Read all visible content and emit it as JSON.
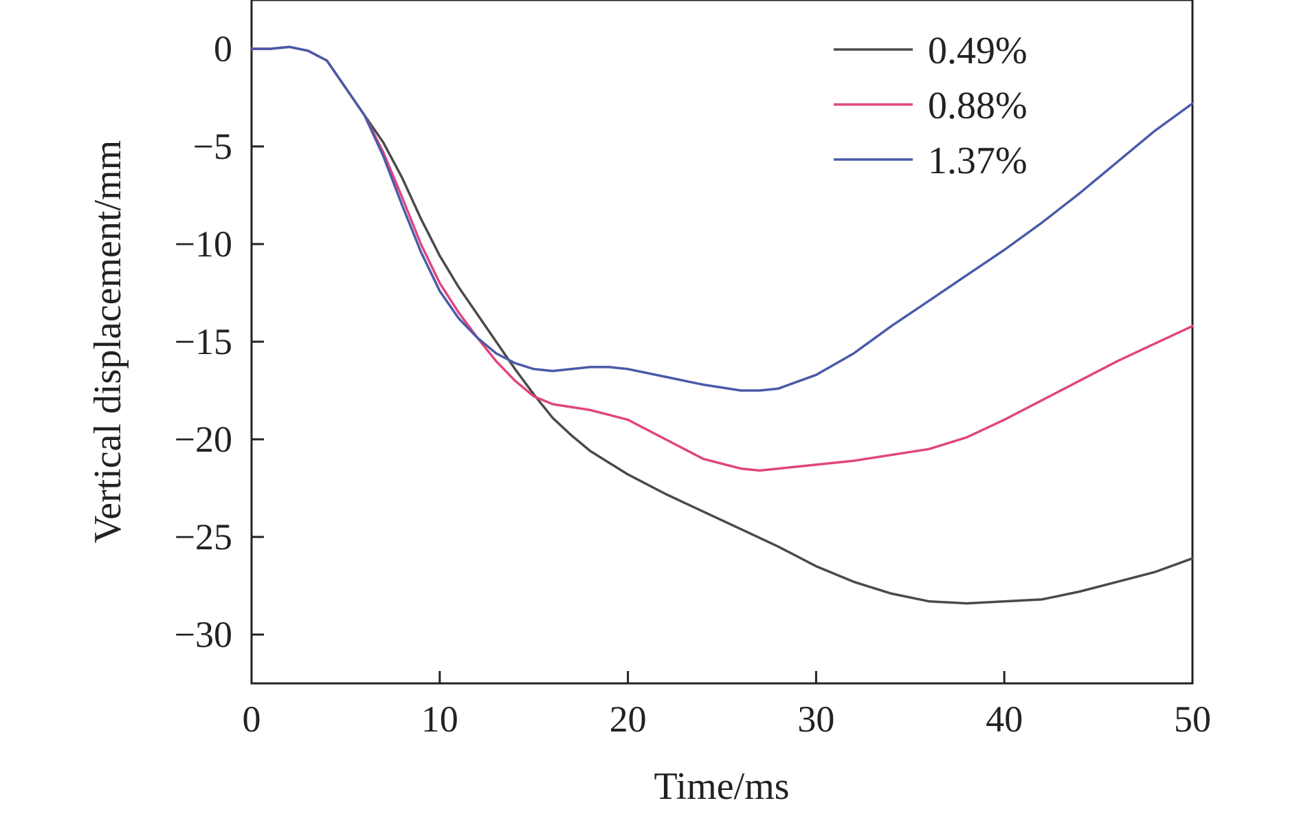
{
  "chart_data": {
    "type": "line",
    "xlabel": "Time/ms",
    "ylabel": "Vertical displacement/mm",
    "xlim": [
      0,
      50
    ],
    "ylim": [
      -32.5,
      2.5
    ],
    "xticks": [
      0,
      10,
      20,
      30,
      40,
      50
    ],
    "yticks": [
      0,
      -5,
      -10,
      -15,
      -20,
      -25,
      -30
    ],
    "ytick_labels": [
      "0",
      "−5",
      "−10",
      "−15",
      "−20",
      "−25",
      "−30"
    ],
    "grid": false,
    "legend_position": "top-right",
    "series": [
      {
        "name": "0.49%",
        "color": "#4a4a4a",
        "x": [
          0,
          1,
          2,
          3,
          4,
          5,
          6,
          7,
          8,
          9,
          10,
          11,
          12,
          13,
          14,
          15,
          16,
          17,
          18,
          19,
          20,
          22,
          24,
          26,
          28,
          30,
          32,
          34,
          36,
          38,
          40,
          42,
          44,
          46,
          48,
          50
        ],
        "y": [
          0,
          0,
          0.1,
          -0.1,
          -0.6,
          -2.0,
          -3.4,
          -4.8,
          -6.6,
          -8.7,
          -10.6,
          -12.2,
          -13.6,
          -15.0,
          -16.4,
          -17.7,
          -18.9,
          -19.8,
          -20.6,
          -21.2,
          -21.8,
          -22.8,
          -23.7,
          -24.6,
          -25.5,
          -26.5,
          -27.3,
          -27.9,
          -28.3,
          -28.4,
          -28.3,
          -28.2,
          -27.8,
          -27.3,
          -26.8,
          -26.1
        ]
      },
      {
        "name": "0.88%",
        "color": "#e0457b",
        "x": [
          0,
          1,
          2,
          3,
          4,
          5,
          6,
          7,
          8,
          9,
          10,
          11,
          12,
          13,
          14,
          15,
          16,
          18,
          20,
          22,
          24,
          26,
          27,
          28,
          30,
          32,
          34,
          36,
          38,
          40,
          42,
          44,
          46,
          48,
          50
        ],
        "y": [
          0,
          0,
          0.1,
          -0.1,
          -0.6,
          -2.0,
          -3.4,
          -5.3,
          -7.6,
          -10.0,
          -12.0,
          -13.5,
          -14.8,
          -16.0,
          -17.0,
          -17.8,
          -18.2,
          -18.5,
          -19.0,
          -20.0,
          -21.0,
          -21.5,
          -21.6,
          -21.5,
          -21.3,
          -21.1,
          -20.8,
          -20.5,
          -19.9,
          -19.0,
          -18.0,
          -17.0,
          -16.0,
          -15.1,
          -14.2
        ]
      },
      {
        "name": "1.37%",
        "color": "#4b5aa8",
        "x": [
          0,
          1,
          2,
          3,
          4,
          5,
          6,
          7,
          8,
          9,
          10,
          11,
          12,
          13,
          14,
          15,
          16,
          17,
          18,
          19,
          20,
          22,
          24,
          26,
          27,
          28,
          30,
          32,
          34,
          36,
          38,
          40,
          42,
          44,
          46,
          48,
          50
        ],
        "y": [
          0,
          0,
          0.1,
          -0.1,
          -0.6,
          -2.0,
          -3.4,
          -5.5,
          -8.0,
          -10.4,
          -12.4,
          -13.8,
          -14.8,
          -15.6,
          -16.1,
          -16.4,
          -16.5,
          -16.4,
          -16.3,
          -16.3,
          -16.4,
          -16.8,
          -17.2,
          -17.5,
          -17.5,
          -17.4,
          -16.7,
          -15.6,
          -14.2,
          -12.9,
          -11.6,
          -10.3,
          -8.9,
          -7.4,
          -5.8,
          -4.2,
          -2.8
        ]
      }
    ]
  }
}
